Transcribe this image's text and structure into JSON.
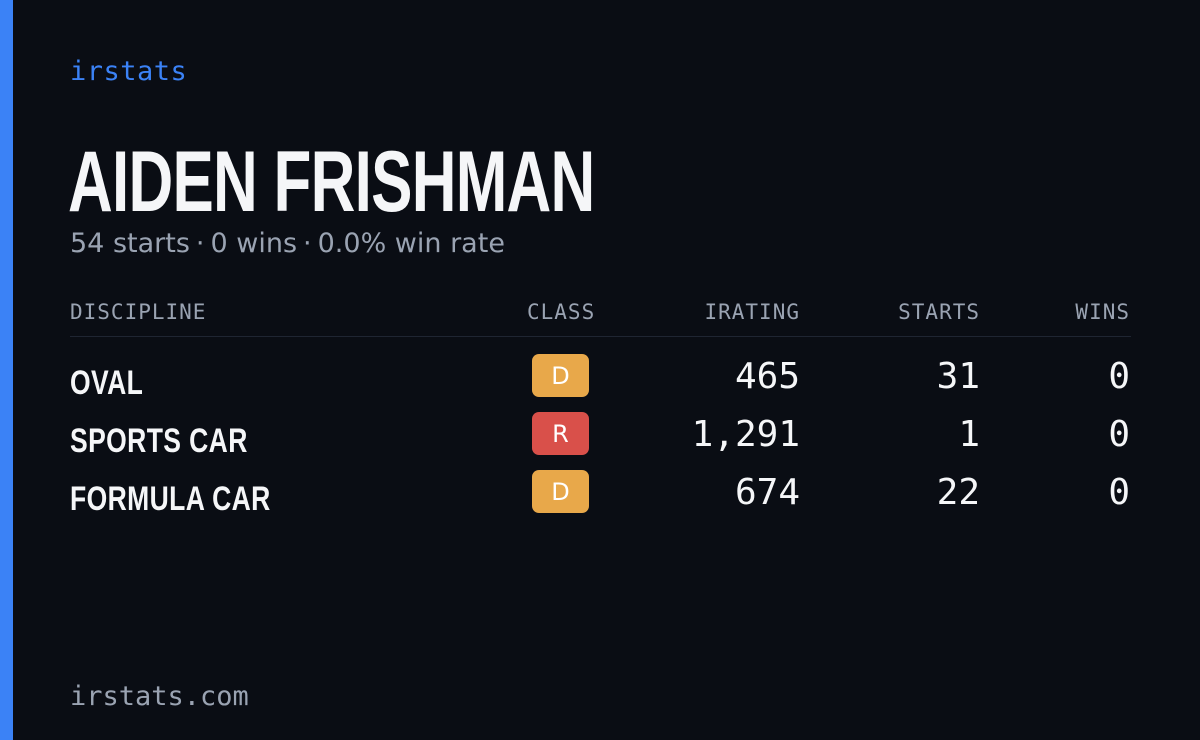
{
  "brand": "irstats",
  "player": {
    "name": "AIDEN FRISHMAN",
    "starts": "54 starts",
    "wins": "0 wins",
    "win_rate": "0.0% win rate",
    "separator": "·"
  },
  "table": {
    "headers": {
      "discipline": "DISCIPLINE",
      "class": "CLASS",
      "irating": "IRATING",
      "starts": "STARTS",
      "wins": "WINS"
    },
    "rows": [
      {
        "discipline": "OVAL",
        "class": "D",
        "class_color": "#e8a84a",
        "irating": "465",
        "starts": "31",
        "wins": "0"
      },
      {
        "discipline": "SPORTS CAR",
        "class": "R",
        "class_color": "#d9504a",
        "irating": "1,291",
        "starts": "1",
        "wins": "0"
      },
      {
        "discipline": "FORMULA CAR",
        "class": "D",
        "class_color": "#e8a84a",
        "irating": "674",
        "starts": "22",
        "wins": "0"
      }
    ]
  },
  "footer": {
    "domain": "irstats.com"
  },
  "colors": {
    "background": "#0a0d14",
    "accent": "#3b82f6",
    "text_primary": "#f5f6f8",
    "text_secondary": "#9aa3b2"
  }
}
